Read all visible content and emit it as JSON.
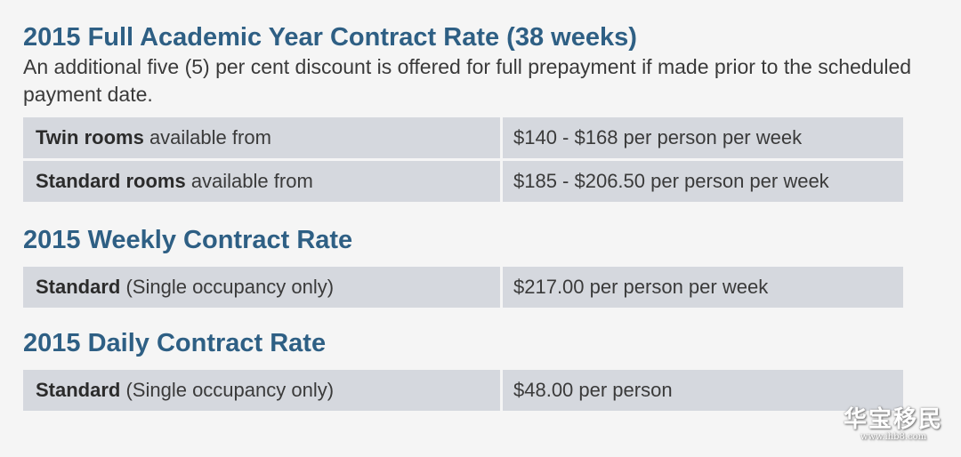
{
  "section1": {
    "title": "2015 Full Academic Year Contract Rate (38 weeks)",
    "note": "An additional five (5) per cent discount is offered for full prepayment if made prior to the scheduled payment date.",
    "rows": [
      {
        "label_bold": "Twin rooms",
        "label_rest": " available from",
        "price": "$140 - $168 per person per week"
      },
      {
        "label_bold": "Standard rooms",
        "label_rest": " available from",
        "price": "$185 - $206.50 per person per week"
      }
    ]
  },
  "section2": {
    "title": "2015 Weekly Contract Rate",
    "rows": [
      {
        "label_bold": "Standard",
        "label_rest": " (Single occupancy only)",
        "price": "$217.00 per person per week"
      }
    ]
  },
  "section3": {
    "title": "2015 Daily Contract Rate",
    "rows": [
      {
        "label_bold": "Standard",
        "label_rest": " (Single occupancy only)",
        "price": "$48.00 per person"
      }
    ]
  },
  "watermark": {
    "main": "华宝移民",
    "url": "www.ihb8.com"
  }
}
